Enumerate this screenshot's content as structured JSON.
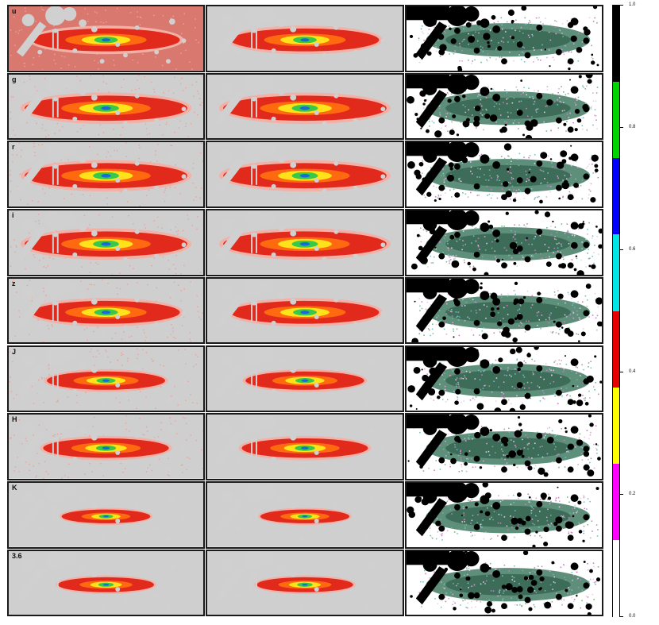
{
  "bands": [
    "u",
    "g",
    "r",
    "i",
    "z",
    "J",
    "H",
    "K",
    "3.6"
  ],
  "colorbar": {
    "ticks": [
      "0.0",
      "0.2",
      "0.4",
      "0.6",
      "0.8",
      "1.0"
    ],
    "segments": [
      "#000000",
      "#00d400",
      "#0000ff",
      "#00e5e5",
      "#e60000",
      "#ffff00",
      "#ff00ff",
      "#ffffff"
    ]
  }
}
